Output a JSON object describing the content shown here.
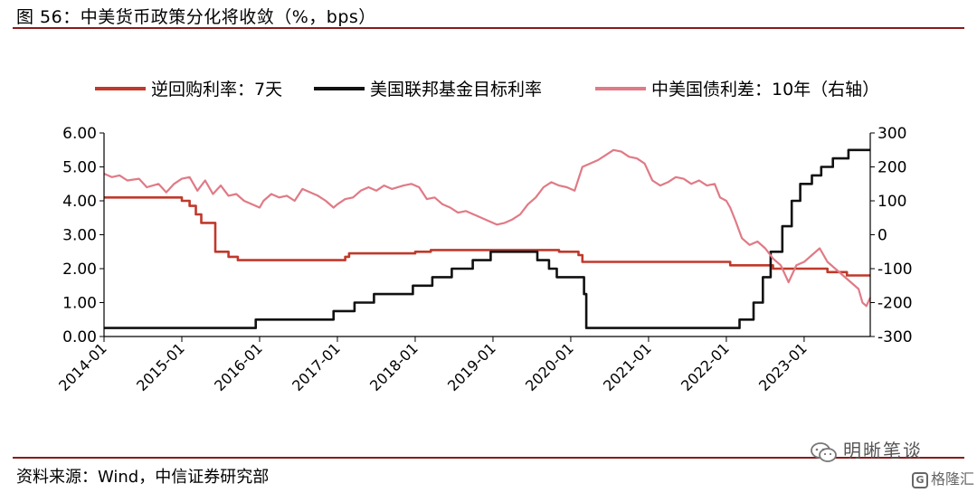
{
  "title": "图 56：中美货币政策分化将收敛（%，bps）",
  "source": "资料来源：Wind，中信证券研究部",
  "watermark": {
    "brand": "明晰笔谈",
    "site": "格隆汇"
  },
  "chart_data": {
    "type": "line",
    "legend_position": "top",
    "grid": false,
    "x_ticks": [
      "2014-01",
      "2015-01",
      "2016-01",
      "2017-01",
      "2018-01",
      "2019-01",
      "2020-01",
      "2021-01",
      "2022-01",
      "2023-01"
    ],
    "xlim": [
      2014.0,
      2023.85
    ],
    "y_left": {
      "ticks": [
        "0.00",
        "1.00",
        "2.00",
        "3.00",
        "4.00",
        "5.00",
        "6.00"
      ],
      "range": [
        0,
        6
      ]
    },
    "y_right": {
      "ticks": [
        "-300",
        "-200",
        "-100",
        "0",
        "100",
        "200",
        "300"
      ],
      "range": [
        -300,
        300
      ]
    },
    "series": [
      {
        "name": "逆回购利率：7天",
        "color": "#c0392b",
        "axis": "left",
        "step": true,
        "points": [
          [
            2014.0,
            4.1
          ],
          [
            2014.95,
            4.1
          ],
          [
            2015.0,
            4.0
          ],
          [
            2015.1,
            3.85
          ],
          [
            2015.18,
            3.6
          ],
          [
            2015.25,
            3.35
          ],
          [
            2015.4,
            3.35
          ],
          [
            2015.43,
            2.5
          ],
          [
            2015.6,
            2.35
          ],
          [
            2015.72,
            2.25
          ],
          [
            2016.0,
            2.25
          ],
          [
            2016.5,
            2.25
          ],
          [
            2017.0,
            2.25
          ],
          [
            2017.1,
            2.35
          ],
          [
            2017.15,
            2.45
          ],
          [
            2017.5,
            2.45
          ],
          [
            2018.0,
            2.5
          ],
          [
            2018.2,
            2.55
          ],
          [
            2019.0,
            2.55
          ],
          [
            2019.85,
            2.5
          ],
          [
            2020.1,
            2.4
          ],
          [
            2020.15,
            2.2
          ],
          [
            2021.0,
            2.2
          ],
          [
            2022.0,
            2.2
          ],
          [
            2022.05,
            2.1
          ],
          [
            2022.6,
            2.0
          ],
          [
            2023.3,
            1.9
          ],
          [
            2023.55,
            1.8
          ],
          [
            2023.85,
            1.8
          ]
        ]
      },
      {
        "name": "美国联邦基金目标利率",
        "color": "#111111",
        "axis": "left",
        "step": true,
        "points": [
          [
            2014.0,
            0.25
          ],
          [
            2015.92,
            0.25
          ],
          [
            2015.95,
            0.5
          ],
          [
            2016.92,
            0.5
          ],
          [
            2016.95,
            0.75
          ],
          [
            2017.2,
            0.75
          ],
          [
            2017.22,
            1.0
          ],
          [
            2017.45,
            1.0
          ],
          [
            2017.47,
            1.25
          ],
          [
            2017.95,
            1.25
          ],
          [
            2017.97,
            1.5
          ],
          [
            2018.2,
            1.5
          ],
          [
            2018.22,
            1.75
          ],
          [
            2018.45,
            1.75
          ],
          [
            2018.47,
            2.0
          ],
          [
            2018.72,
            2.0
          ],
          [
            2018.74,
            2.25
          ],
          [
            2018.95,
            2.25
          ],
          [
            2018.97,
            2.5
          ],
          [
            2019.55,
            2.5
          ],
          [
            2019.57,
            2.25
          ],
          [
            2019.7,
            2.25
          ],
          [
            2019.72,
            2.0
          ],
          [
            2019.8,
            2.0
          ],
          [
            2019.82,
            1.75
          ],
          [
            2020.15,
            1.75
          ],
          [
            2020.17,
            1.25
          ],
          [
            2020.2,
            0.25
          ],
          [
            2022.15,
            0.25
          ],
          [
            2022.17,
            0.5
          ],
          [
            2022.33,
            0.5
          ],
          [
            2022.35,
            1.0
          ],
          [
            2022.45,
            1.0
          ],
          [
            2022.47,
            1.75
          ],
          [
            2022.55,
            1.75
          ],
          [
            2022.57,
            2.5
          ],
          [
            2022.7,
            2.5
          ],
          [
            2022.72,
            3.25
          ],
          [
            2022.82,
            3.25
          ],
          [
            2022.84,
            4.0
          ],
          [
            2022.93,
            4.0
          ],
          [
            2022.95,
            4.5
          ],
          [
            2023.08,
            4.5
          ],
          [
            2023.1,
            4.75
          ],
          [
            2023.2,
            4.75
          ],
          [
            2023.22,
            5.0
          ],
          [
            2023.35,
            5.0
          ],
          [
            2023.37,
            5.25
          ],
          [
            2023.55,
            5.25
          ],
          [
            2023.57,
            5.5
          ],
          [
            2023.85,
            5.5
          ]
        ]
      },
      {
        "name": "中美国债利差：10年（右轴）",
        "color": "#e07a86",
        "axis": "right",
        "step": false,
        "points": [
          [
            2014.0,
            180
          ],
          [
            2014.1,
            170
          ],
          [
            2014.2,
            175
          ],
          [
            2014.3,
            160
          ],
          [
            2014.45,
            165
          ],
          [
            2014.55,
            140
          ],
          [
            2014.7,
            150
          ],
          [
            2014.8,
            125
          ],
          [
            2014.9,
            150
          ],
          [
            2015.0,
            165
          ],
          [
            2015.1,
            170
          ],
          [
            2015.2,
            130
          ],
          [
            2015.3,
            160
          ],
          [
            2015.4,
            120
          ],
          [
            2015.5,
            145
          ],
          [
            2015.6,
            115
          ],
          [
            2015.7,
            120
          ],
          [
            2015.8,
            100
          ],
          [
            2015.9,
            90
          ],
          [
            2016.0,
            80
          ],
          [
            2016.05,
            100
          ],
          [
            2016.15,
            120
          ],
          [
            2016.25,
            110
          ],
          [
            2016.35,
            115
          ],
          [
            2016.45,
            100
          ],
          [
            2016.55,
            135
          ],
          [
            2016.65,
            125
          ],
          [
            2016.75,
            115
          ],
          [
            2016.85,
            100
          ],
          [
            2016.95,
            80
          ],
          [
            2017.0,
            90
          ],
          [
            2017.1,
            105
          ],
          [
            2017.2,
            110
          ],
          [
            2017.3,
            130
          ],
          [
            2017.4,
            140
          ],
          [
            2017.5,
            130
          ],
          [
            2017.6,
            145
          ],
          [
            2017.7,
            135
          ],
          [
            2017.85,
            145
          ],
          [
            2017.95,
            150
          ],
          [
            2018.05,
            140
          ],
          [
            2018.15,
            105
          ],
          [
            2018.25,
            110
          ],
          [
            2018.35,
            90
          ],
          [
            2018.45,
            80
          ],
          [
            2018.55,
            65
          ],
          [
            2018.65,
            70
          ],
          [
            2018.75,
            60
          ],
          [
            2018.85,
            50
          ],
          [
            2018.95,
            40
          ],
          [
            2019.05,
            30
          ],
          [
            2019.15,
            35
          ],
          [
            2019.25,
            45
          ],
          [
            2019.35,
            60
          ],
          [
            2019.45,
            90
          ],
          [
            2019.55,
            110
          ],
          [
            2019.65,
            140
          ],
          [
            2019.75,
            155
          ],
          [
            2019.85,
            145
          ],
          [
            2019.95,
            140
          ],
          [
            2020.05,
            130
          ],
          [
            2020.15,
            200
          ],
          [
            2020.25,
            210
          ],
          [
            2020.35,
            220
          ],
          [
            2020.45,
            235
          ],
          [
            2020.55,
            250
          ],
          [
            2020.65,
            245
          ],
          [
            2020.75,
            230
          ],
          [
            2020.85,
            225
          ],
          [
            2020.95,
            210
          ],
          [
            2021.05,
            160
          ],
          [
            2021.15,
            145
          ],
          [
            2021.25,
            155
          ],
          [
            2021.35,
            170
          ],
          [
            2021.45,
            165
          ],
          [
            2021.55,
            150
          ],
          [
            2021.65,
            160
          ],
          [
            2021.75,
            145
          ],
          [
            2021.85,
            150
          ],
          [
            2021.92,
            110
          ],
          [
            2022.0,
            100
          ],
          [
            2022.05,
            80
          ],
          [
            2022.12,
            40
          ],
          [
            2022.2,
            -10
          ],
          [
            2022.3,
            -30
          ],
          [
            2022.4,
            -20
          ],
          [
            2022.5,
            -40
          ],
          [
            2022.6,
            -70
          ],
          [
            2022.7,
            -90
          ],
          [
            2022.8,
            -140
          ],
          [
            2022.9,
            -90
          ],
          [
            2023.0,
            -80
          ],
          [
            2023.1,
            -60
          ],
          [
            2023.2,
            -40
          ],
          [
            2023.3,
            -80
          ],
          [
            2023.4,
            -100
          ],
          [
            2023.5,
            -120
          ],
          [
            2023.6,
            -140
          ],
          [
            2023.7,
            -160
          ],
          [
            2023.75,
            -200
          ],
          [
            2023.8,
            -210
          ],
          [
            2023.85,
            -185
          ]
        ]
      }
    ]
  }
}
